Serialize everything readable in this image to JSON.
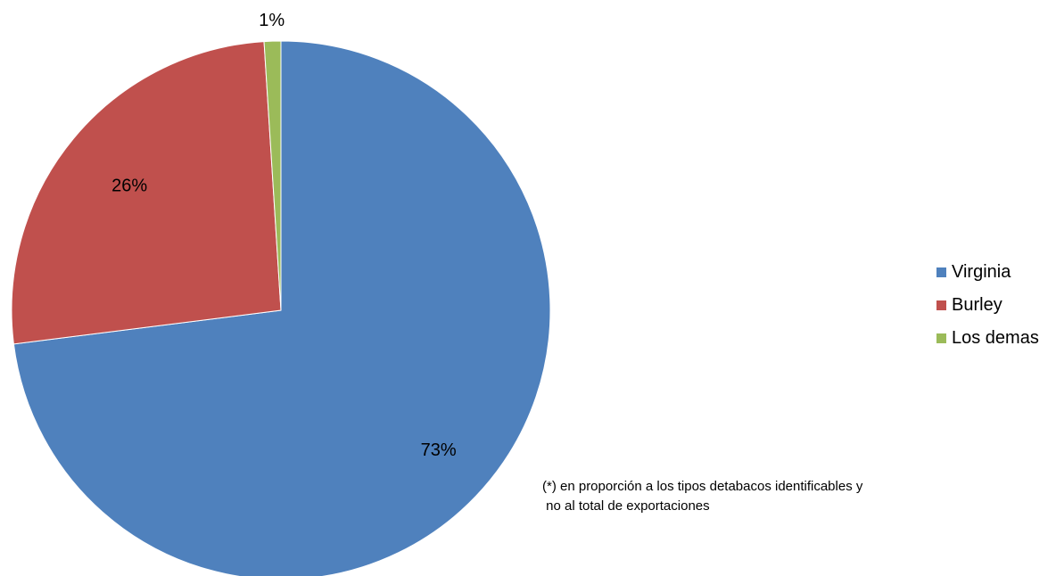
{
  "chart_data": {
    "type": "pie",
    "slices": [
      {
        "name": "Virginia",
        "value": 73,
        "label": "73%",
        "color": "#4F81BD"
      },
      {
        "name": "Burley",
        "value": 26,
        "label": "26%",
        "color": "#C0504D"
      },
      {
        "name": "Los demas",
        "value": 1,
        "label": "1%",
        "color": "#9BBB59"
      }
    ],
    "legend_position": "right",
    "note_line1": "(*) en proporción a los tipos detabacos identificables y",
    "note_line2": " no al total de exportaciones"
  }
}
